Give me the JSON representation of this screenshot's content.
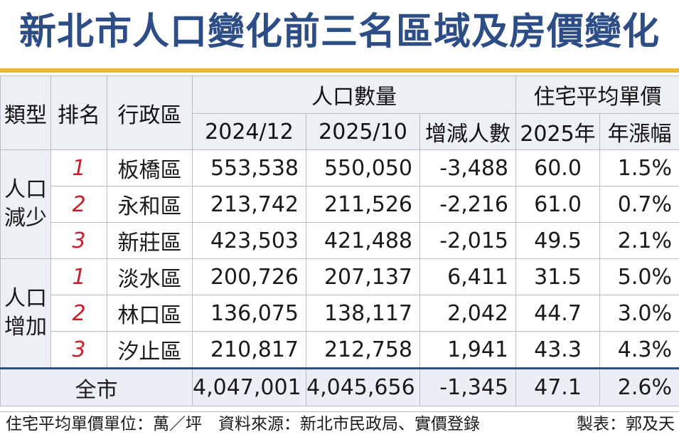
{
  "title": "新北市人口變化前三名區域及房價變化",
  "headers": {
    "type": "類型",
    "rank": "排名",
    "district": "行政區",
    "population": "人口數量",
    "price": "住宅平均單價",
    "pop_2024": "2024/12",
    "pop_2025": "2025/10",
    "change": "增減人數",
    "price_2025": "2025年",
    "growth": "年漲幅"
  },
  "groups": [
    {
      "type": "人口減少",
      "rows": [
        {
          "rank": "1",
          "district": "板橋區",
          "pop_2024": "553,538",
          "pop_2025": "550,050",
          "change": "-3,488",
          "price": "60.0",
          "growth": "1.5%"
        },
        {
          "rank": "2",
          "district": "永和區",
          "pop_2024": "213,742",
          "pop_2025": "211,526",
          "change": "-2,216",
          "price": "61.0",
          "growth": "0.7%"
        },
        {
          "rank": "3",
          "district": "新莊區",
          "pop_2024": "423,503",
          "pop_2025": "421,488",
          "change": "-2,015",
          "price": "49.5",
          "growth": "2.1%"
        }
      ]
    },
    {
      "type": "人口增加",
      "rows": [
        {
          "rank": "1",
          "district": "淡水區",
          "pop_2024": "200,726",
          "pop_2025": "207,137",
          "change": "6,411",
          "price": "31.5",
          "growth": "5.0%"
        },
        {
          "rank": "2",
          "district": "林口區",
          "pop_2024": "136,075",
          "pop_2025": "138,117",
          "change": "2,042",
          "price": "44.7",
          "growth": "3.0%"
        },
        {
          "rank": "3",
          "district": "汐止區",
          "pop_2024": "210,817",
          "pop_2025": "212,758",
          "change": "1,941",
          "price": "43.3",
          "growth": "4.3%"
        }
      ]
    }
  ],
  "total": {
    "label": "全市",
    "pop_2024": "4,047,001",
    "pop_2025": "4,045,656",
    "change": "-1,345",
    "price": "47.1",
    "growth": "2.6%"
  },
  "footer": {
    "left": "住宅平均單價單位：萬／坪　資料來源：新北市民政局、實價登錄",
    "right": "製表：郭及天"
  },
  "colors": {
    "title": "#2c4d86",
    "accent": "#e8b93a",
    "rank": "#c51f2c",
    "header_bg": "#eceff4"
  }
}
